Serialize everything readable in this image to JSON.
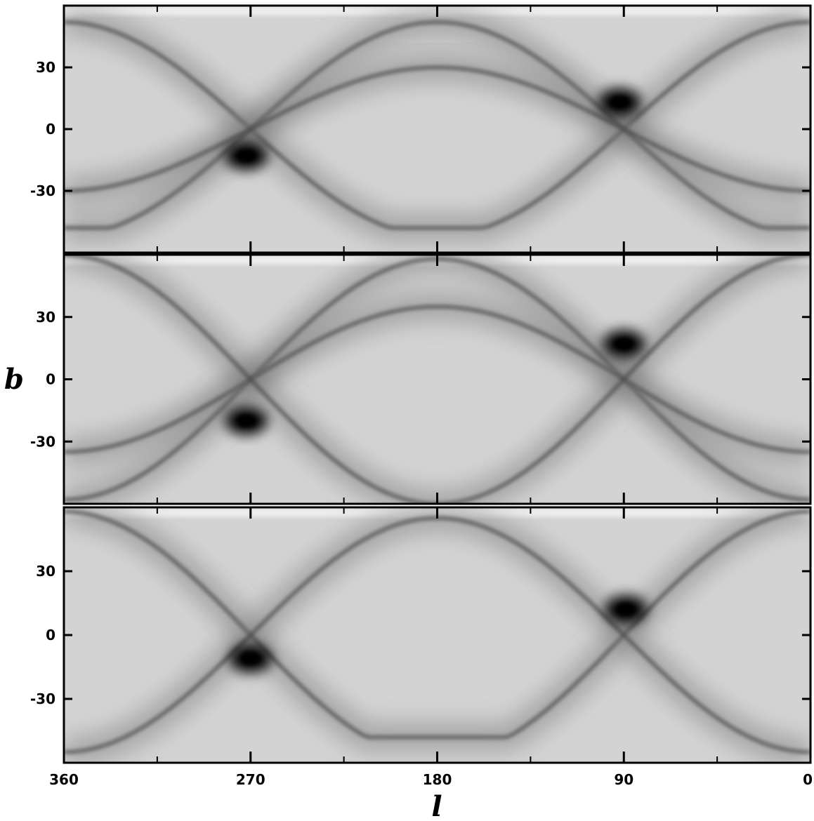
{
  "chart_data": {
    "type": "heatmap",
    "colormap": "grayscale",
    "xlabel": "l",
    "ylabel": "b",
    "xlim": [
      360,
      0
    ],
    "ylim": [
      -60,
      60
    ],
    "x_ticks": [
      360,
      270,
      180,
      90,
      0
    ],
    "x_tick_labels": [
      "360",
      "270",
      "180",
      "90",
      "0"
    ],
    "y_ticks": [
      30,
      0,
      -30
    ],
    "y_tick_labels": [
      "30",
      "0",
      "-30"
    ],
    "panels": [
      {
        "peaks": [
          {
            "l": 92,
            "b": 13
          },
          {
            "l": 272,
            "b": -13
          }
        ],
        "arcs": [
          {
            "amplitude": 52,
            "center_l": 0,
            "min_b": -48
          },
          {
            "amplitude": 52,
            "center_l": 180,
            "min_b": -48
          },
          {
            "amplitude": 30,
            "center_l": 180,
            "min_b": -60
          }
        ]
      },
      {
        "peaks": [
          {
            "l": 90,
            "b": 17
          },
          {
            "l": 272,
            "b": -20
          }
        ],
        "arcs": [
          {
            "amplitude": 58,
            "center_l": 180,
            "min_b": -60
          },
          {
            "amplitude": 35,
            "center_l": 180,
            "min_b": -60
          },
          {
            "amplitude": 60,
            "center_l": 0,
            "min_b": -60
          }
        ]
      },
      {
        "peaks": [
          {
            "l": 89,
            "b": 12
          },
          {
            "l": 270,
            "b": -11
          }
        ],
        "arcs": [
          {
            "amplitude": 58,
            "center_l": 0,
            "min_b": -48
          },
          {
            "amplitude": 55,
            "center_l": 180,
            "min_b": -60
          }
        ]
      }
    ]
  }
}
